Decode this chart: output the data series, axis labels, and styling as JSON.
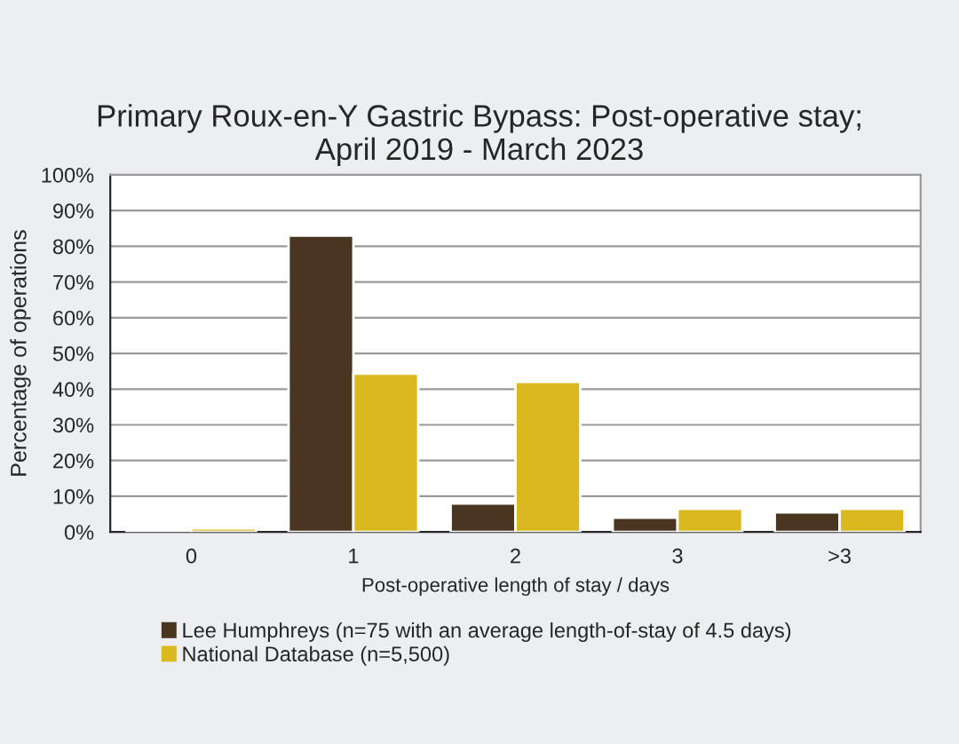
{
  "chart_data": {
    "type": "bar",
    "title": "Primary Roux-en-Y Gastric Bypass: Post-operative stay;\nApril 2019 - March 2023",
    "xlabel": "Post-operative length of stay / days",
    "ylabel": "Percentage of operations",
    "categories": [
      "0",
      "1",
      "2",
      "3",
      ">3"
    ],
    "series": [
      {
        "name": "Lee Humphreys (n=75 with an average length-of-stay of 4.5 days)",
        "color": "#4a3520",
        "values": [
          0.5,
          83,
          8,
          4,
          5.5
        ]
      },
      {
        "name": "National Database (n=5,500)",
        "color": "#d9b820",
        "values": [
          1,
          44.3,
          42,
          6.5,
          6.5
        ]
      }
    ],
    "ylim": [
      0,
      100
    ],
    "yticks": [
      {
        "value": 0,
        "label": "0%"
      },
      {
        "value": 10,
        "label": "10%"
      },
      {
        "value": 20,
        "label": "20%"
      },
      {
        "value": 30,
        "label": "30%"
      },
      {
        "value": 40,
        "label": "40%"
      },
      {
        "value": 50,
        "label": "50%"
      },
      {
        "value": 60,
        "label": "60%"
      },
      {
        "value": 70,
        "label": "70%"
      },
      {
        "value": 80,
        "label": "80%"
      },
      {
        "value": 90,
        "label": "90%"
      },
      {
        "value": 100,
        "label": "100%"
      }
    ],
    "grid": "y",
    "legend": "bottom left"
  }
}
